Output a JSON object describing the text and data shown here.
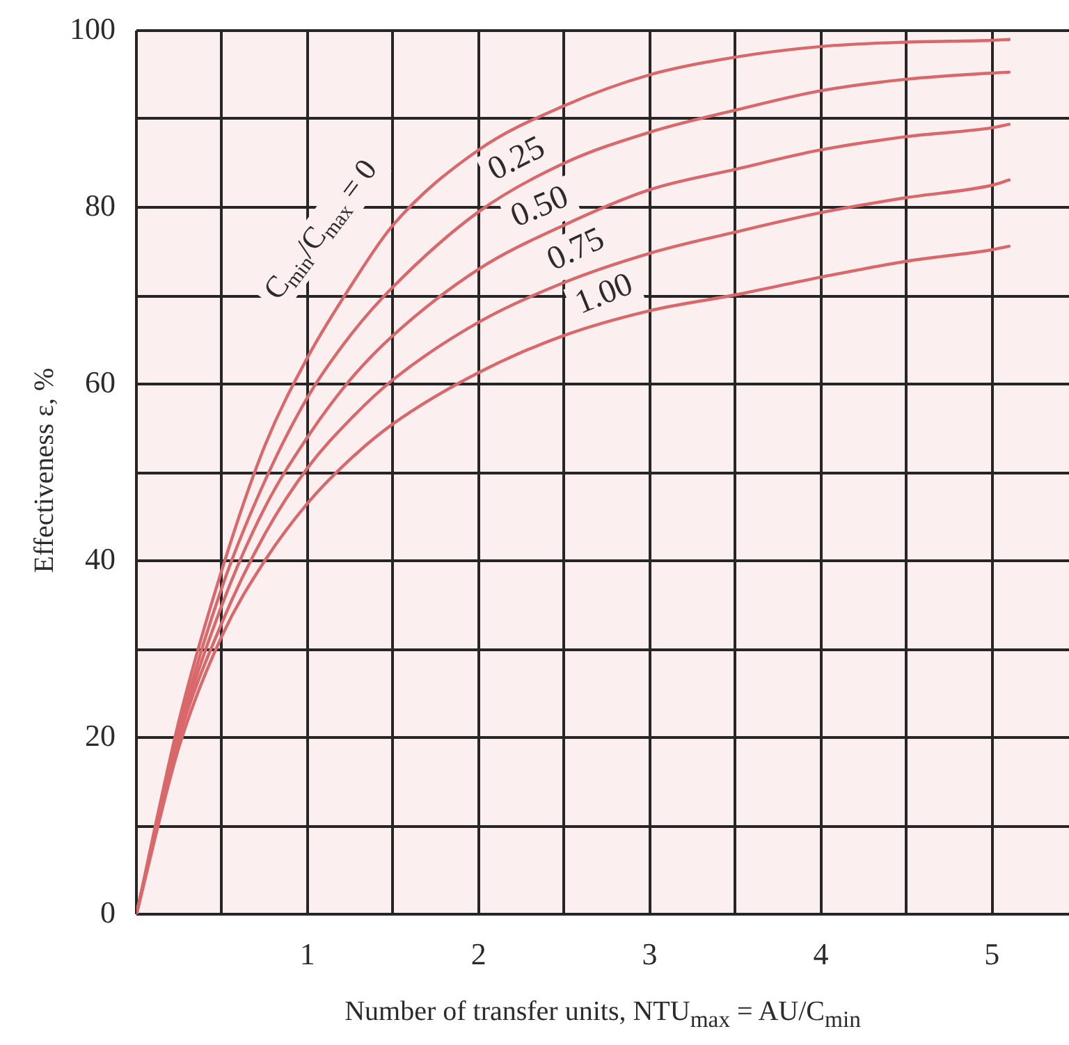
{
  "chart_data": {
    "type": "line",
    "xlabel": "Number of transfer units, NTU$_{max}$ = AU/C$_{min}$",
    "ylabel": "Effectiveness ε, %",
    "x": [
      0,
      0.25,
      0.5,
      0.75,
      1,
      1.25,
      1.5,
      2,
      2.5,
      3,
      3.5,
      4,
      4.5,
      5,
      5.1
    ],
    "series": [
      {
        "name": "C$_{min}$/C$_{max}$ = 0",
        "color": "#d9686b",
        "values": [
          0,
          22,
          39,
          53,
          63,
          71,
          78,
          86.5,
          91.5,
          95,
          97,
          98.2,
          98.7,
          98.9,
          99
        ]
      },
      {
        "name": "0.25",
        "color": "#d9686b",
        "values": [
          0,
          21,
          37,
          49,
          58.5,
          65.5,
          71,
          79.5,
          85,
          88.5,
          91,
          93.2,
          94.5,
          95.2,
          95.3
        ]
      },
      {
        "name": "0.50",
        "color": "#d9686b",
        "values": [
          0,
          20.5,
          35,
          46,
          54,
          60.5,
          65.5,
          73,
          78,
          82,
          84.3,
          86.5,
          88,
          89,
          89.4
        ]
      },
      {
        "name": "0.75",
        "color": "#d9686b",
        "values": [
          0,
          20,
          33,
          43,
          50.5,
          56,
          60.5,
          67,
          71.5,
          74.8,
          77.2,
          79.4,
          81.1,
          82.5,
          83.1
        ]
      },
      {
        "name": "1.00",
        "color": "#d9686b",
        "values": [
          0,
          19,
          31.5,
          40,
          46.5,
          51.5,
          55.5,
          61.3,
          65.5,
          68.3,
          70.1,
          72.1,
          73.9,
          75.2,
          75.6
        ]
      }
    ],
    "xlim": [
      0,
      5.45
    ],
    "ylim": [
      0,
      100
    ],
    "xticks": [
      {
        "value": 0,
        "label": null
      },
      {
        "value": 0.5,
        "label": null
      },
      1,
      {
        "value": 1.5,
        "label": null
      },
      2,
      {
        "value": 2.5,
        "label": null
      },
      3,
      {
        "value": 3.5,
        "label": null
      },
      4,
      {
        "value": 4.5,
        "label": null
      },
      5
    ],
    "yticks": [
      0,
      {
        "value": 10,
        "label": null
      },
      20,
      {
        "value": 30,
        "label": null
      },
      40,
      {
        "value": 50,
        "label": null
      },
      60,
      {
        "value": 70,
        "label": null
      },
      80,
      {
        "value": 90,
        "label": null
      },
      100
    ],
    "grid": true,
    "marker": "none",
    "line_style": "solid"
  }
}
